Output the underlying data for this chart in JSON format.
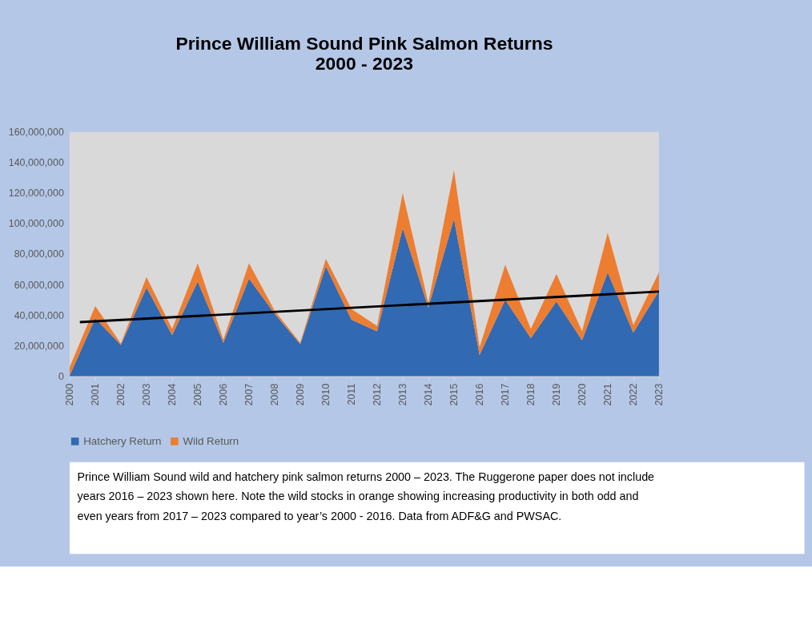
{
  "chart_data": {
    "type": "area",
    "title": "Prince William Sound Pink Salmon Returns\n2000 - 2023",
    "x": [
      2000,
      2001,
      2002,
      2003,
      2004,
      2005,
      2006,
      2007,
      2008,
      2009,
      2010,
      2011,
      2012,
      2013,
      2014,
      2015,
      2016,
      2017,
      2018,
      2019,
      2020,
      2021,
      2022,
      2023
    ],
    "stacked": true,
    "series": [
      {
        "name": "Hatchery Return",
        "color": "#3169b2",
        "values": [
          500000,
          38000000,
          20500000,
          58000000,
          27000000,
          62000000,
          22000000,
          64000000,
          41000000,
          21000000,
          72000000,
          37000000,
          29500000,
          97000000,
          45000000,
          103000000,
          14000000,
          50000000,
          25000000,
          49000000,
          23500000,
          68000000,
          28500000,
          56000000
        ]
      },
      {
        "name": "Wild Return",
        "color": "#ed7d31",
        "values": [
          5500000,
          8000000,
          1000000,
          7000000,
          4000000,
          12000000,
          2000000,
          10000000,
          2000000,
          1000000,
          5000000,
          7000000,
          3500000,
          23000000,
          3000000,
          32000000,
          5000000,
          23000000,
          6000000,
          18000000,
          6000000,
          26000000,
          5000000,
          12000000
        ]
      },
      {
        "type": "line",
        "color": "#000000",
        "x": [
          2000.4,
          2023
        ],
        "values": [
          35500000,
          55500000
        ]
      }
    ],
    "xlim": [
      2000,
      2023
    ],
    "xticks": [
      2000,
      2001,
      2002,
      2003,
      2004,
      2005,
      2006,
      2007,
      2008,
      2009,
      2010,
      2011,
      2012,
      2013,
      2014,
      2015,
      2016,
      2017,
      2018,
      2019,
      2020,
      2021,
      2022,
      2023
    ],
    "ylim": [
      0,
      160000000
    ],
    "yticks": [
      0,
      {
        "value": 20000000,
        "label": "20,000,000"
      },
      {
        "value": 40000000,
        "label": "40,000,000"
      },
      {
        "value": 60000000,
        "label": "60,000,000"
      },
      {
        "value": 80000000,
        "label": "80,000,000"
      },
      {
        "value": 100000000,
        "label": "100,000,000"
      },
      {
        "value": 120000000,
        "label": "120,000,000"
      },
      {
        "value": 140000000,
        "label": "140,000,000"
      },
      {
        "value": 160000000,
        "label": "160,000,000"
      }
    ],
    "grid": false,
    "legend": "bottom",
    "annotations": [
      "Prince William Sound wild and hatchery pink salmon returns 2000 – 2023. The Ruggerone paper does not include years 2016 – 2023 shown here. Note the wild stocks in orange showing increasing productivity in both odd and even years from 2017 – 2023 compared to year’s 2000 - 2016. Data from ADF&G and PWSAC."
    ]
  }
}
